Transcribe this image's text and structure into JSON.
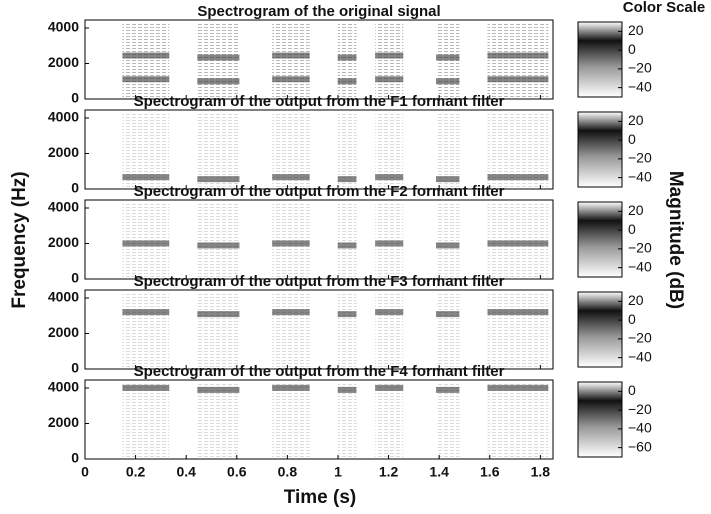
{
  "colorbar_title": "Color Scale",
  "xlabel": "Time (s)",
  "ylabel": "Frequency (Hz)",
  "colorbar_label": "Magnitude (dB)",
  "chart_data": [
    {
      "type": "spectrogram",
      "title": "Spectrogram of the original signal",
      "xlim": [
        0,
        1.85
      ],
      "xticks": [
        0,
        0.2,
        0.4,
        0.6,
        0.8,
        1,
        1.2,
        1.4,
        1.6,
        1.8
      ],
      "ylim": [
        0,
        4450
      ],
      "yticks": [
        0,
        2000,
        4000
      ],
      "colorbar": {
        "lim": [
          -50,
          30
        ],
        "ticks": [
          20,
          0,
          {
            "value": -20,
            "label": "−20"
          },
          {
            "value": -40,
            "label": "−40"
          }
        ]
      }
    },
    {
      "type": "spectrogram",
      "title": "Spectrogram of the output from the F1 formant filter",
      "xlim": [
        0,
        1.85
      ],
      "xticks": [
        0,
        0.2,
        0.4,
        0.6,
        0.8,
        1,
        1.2,
        1.4,
        1.6,
        1.8
      ],
      "ylim": [
        0,
        4450
      ],
      "yticks": [
        0,
        2000,
        4000
      ],
      "colorbar": {
        "lim": [
          -50,
          30
        ],
        "ticks": [
          20,
          0,
          {
            "value": -20,
            "label": "−20"
          },
          {
            "value": -40,
            "label": "−40"
          }
        ]
      }
    },
    {
      "type": "spectrogram",
      "title": "Spectrogram of the output from the F2 formant filter",
      "xlim": [
        0,
        1.85
      ],
      "xticks": [
        0,
        0.2,
        0.4,
        0.6,
        0.8,
        1,
        1.2,
        1.4,
        1.6,
        1.8
      ],
      "ylim": [
        0,
        4450
      ],
      "yticks": [
        0,
        2000,
        4000
      ],
      "colorbar": {
        "lim": [
          -50,
          30
        ],
        "ticks": [
          20,
          0,
          {
            "value": -20,
            "label": "−20"
          },
          {
            "value": -40,
            "label": "−40"
          }
        ]
      }
    },
    {
      "type": "spectrogram",
      "title": "Spectrogram of the output from the F3 formant filter",
      "xlim": [
        0,
        1.85
      ],
      "xticks": [
        0,
        0.2,
        0.4,
        0.6,
        0.8,
        1,
        1.2,
        1.4,
        1.6,
        1.8
      ],
      "ylim": [
        0,
        4450
      ],
      "yticks": [
        0,
        2000,
        4000
      ],
      "colorbar": {
        "lim": [
          -50,
          30
        ],
        "ticks": [
          20,
          0,
          {
            "value": -20,
            "label": "−20"
          },
          {
            "value": -40,
            "label": "−40"
          }
        ]
      }
    },
    {
      "type": "spectrogram",
      "title": "Spectrogram of the output from the F4 formant filter",
      "xlim": [
        0,
        1.85
      ],
      "xticks": [
        0,
        0.2,
        0.4,
        0.6,
        0.8,
        1,
        1.2,
        1.4,
        1.6,
        1.8
      ],
      "ylim": [
        0,
        4450
      ],
      "yticks": [
        0,
        2000,
        4000
      ],
      "colorbar": {
        "lim": [
          -70,
          10
        ],
        "ticks": [
          0,
          {
            "value": -20,
            "label": "−20"
          },
          {
            "value": -40,
            "label": "−40"
          },
          {
            "value": -60,
            "label": "−60"
          }
        ]
      }
    }
  ]
}
